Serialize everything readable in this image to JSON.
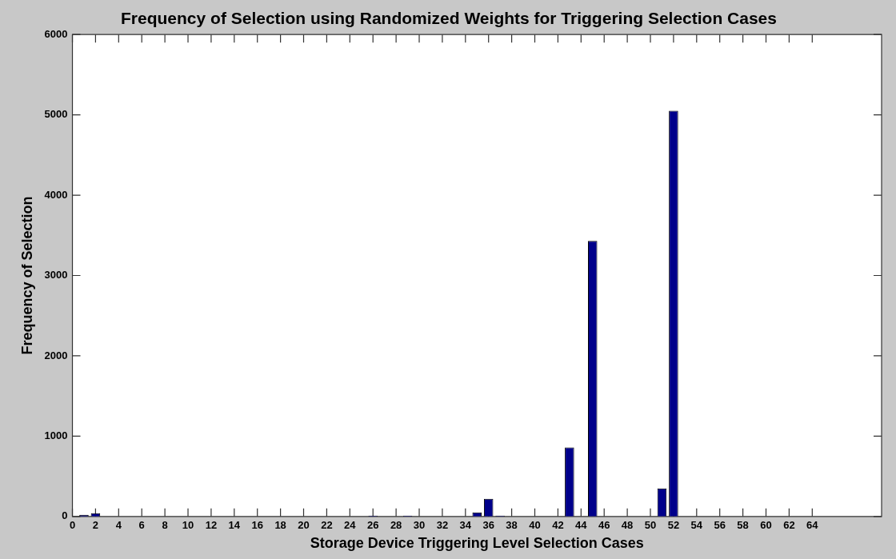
{
  "chart_data": {
    "type": "bar",
    "title": "Frequency of Selection using Randomized Weights for Triggering Selection Cases",
    "xlabel": "Storage Device Triggering Level Selection Cases",
    "ylabel": "Frequency of Selection",
    "x": [
      1,
      2,
      26,
      29,
      35,
      36,
      37,
      43,
      45,
      51,
      52
    ],
    "values": [
      20,
      40,
      10,
      10,
      50,
      220,
      10,
      860,
      3430,
      350,
      5050
    ],
    "color": "#00008b",
    "xlim": [
      0,
      70
    ],
    "xticks": [
      0,
      2,
      4,
      6,
      8,
      10,
      12,
      14,
      16,
      18,
      20,
      22,
      24,
      26,
      28,
      30,
      32,
      34,
      36,
      38,
      40,
      42,
      44,
      46,
      48,
      50,
      52,
      54,
      56,
      58,
      60,
      62,
      64
    ],
    "ylim": [
      0,
      6000
    ],
    "yticks": [
      0,
      1000,
      2000,
      3000,
      4000,
      5000,
      6000
    ],
    "grid": false,
    "legend": false
  }
}
